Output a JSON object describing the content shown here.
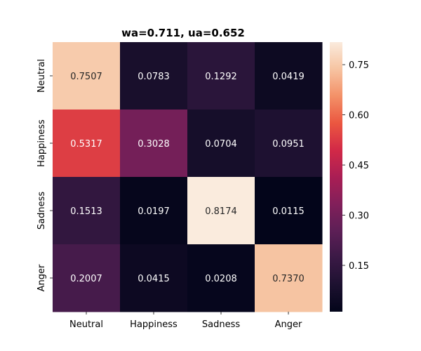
{
  "chart_data": {
    "type": "heatmap",
    "title": "wa=0.711, ua=0.652",
    "xlabel": "",
    "ylabel": "",
    "x_categories": [
      "Neutral",
      "Happiness",
      "Sadness",
      "Anger"
    ],
    "y_categories": [
      "Neutral",
      "Happiness",
      "Sadness",
      "Anger"
    ],
    "values": [
      [
        0.7507,
        0.0783,
        0.1292,
        0.0419
      ],
      [
        0.5317,
        0.3028,
        0.0704,
        0.0951
      ],
      [
        0.1513,
        0.0197,
        0.8174,
        0.0115
      ],
      [
        0.2007,
        0.0415,
        0.0208,
        0.737
      ]
    ],
    "value_labels": [
      [
        "0.7507",
        "0.0783",
        "0.1292",
        "0.0419"
      ],
      [
        "0.5317",
        "0.3028",
        "0.0704",
        "0.0951"
      ],
      [
        "0.1513",
        "0.0197",
        "0.8174",
        "0.0115"
      ],
      [
        "0.2007",
        "0.0415",
        "0.0208",
        "0.7370"
      ]
    ],
    "colormap": "rocket",
    "colorbar": {
      "vmin": 0.0115,
      "vmax": 0.8174,
      "ticks": [
        0.15,
        0.3,
        0.45,
        0.6,
        0.75
      ],
      "tick_labels": [
        "0.15",
        "0.30",
        "0.45",
        "0.60",
        "0.75"
      ]
    },
    "grid": false,
    "legend": "colorbar-right"
  }
}
